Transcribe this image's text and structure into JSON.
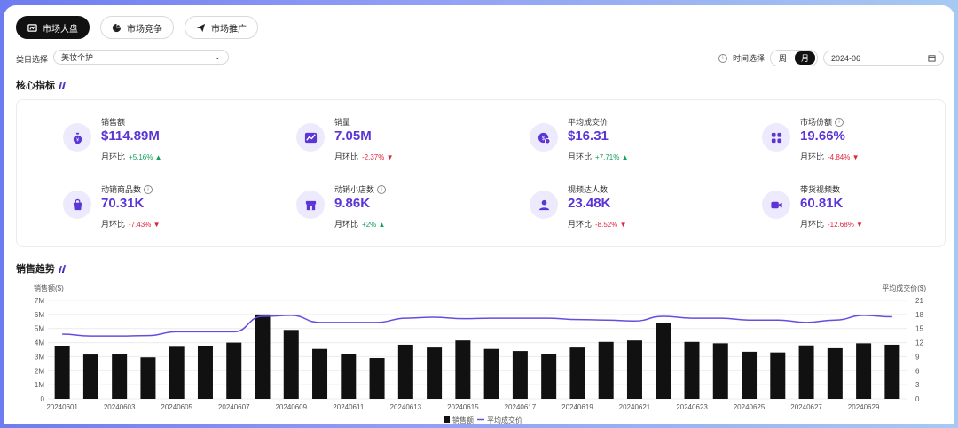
{
  "tabs": [
    {
      "label": "市场大盘",
      "icon": "chart-board-icon",
      "active": true
    },
    {
      "label": "市场竞争",
      "icon": "competition-icon",
      "active": false
    },
    {
      "label": "市场推广",
      "icon": "send-icon",
      "active": false
    }
  ],
  "filters": {
    "category_label": "类目选择",
    "category_value": "美妆个护",
    "time_label": "时间选择",
    "period_week": "周",
    "period_month": "月",
    "month_value": "2024-06"
  },
  "core": {
    "title": "核心指标",
    "compare_label": "月环比",
    "items": [
      {
        "name": "销售额",
        "value": "$114.89M",
        "change": "+5.16%",
        "dir": "up",
        "icon": "money-bag-icon",
        "info": false
      },
      {
        "name": "销量",
        "value": "7.05M",
        "change": "-2.37%",
        "dir": "down",
        "icon": "trend-chart-icon",
        "info": false
      },
      {
        "name": "平均成交价",
        "value": "$16.31",
        "change": "+7.71%",
        "dir": "up",
        "icon": "price-coin-icon",
        "info": false
      },
      {
        "name": "市场份额",
        "value": "19.66%",
        "change": "-4.84%",
        "dir": "down",
        "icon": "grid-icon",
        "info": true
      },
      {
        "name": "动销商品数",
        "value": "70.31K",
        "change": "-7.43%",
        "dir": "down",
        "icon": "shopping-bag-icon",
        "info": true
      },
      {
        "name": "动销小店数",
        "value": "9.86K",
        "change": "+2%",
        "dir": "up",
        "icon": "store-icon",
        "info": true
      },
      {
        "name": "视频达人数",
        "value": "23.48K",
        "change": "-8.52%",
        "dir": "down",
        "icon": "person-icon",
        "info": false
      },
      {
        "name": "带货视频数",
        "value": "60.81K",
        "change": "-12.68%",
        "dir": "down",
        "icon": "video-icon",
        "info": false
      }
    ]
  },
  "trend": {
    "title": "销售趋势"
  },
  "colors": {
    "accent": "#5b35d5",
    "bar": "#111111",
    "line": "#6a4be0",
    "up": "#12a05a",
    "down": "#e0243a"
  },
  "chart_data": {
    "type": "bar",
    "title": "销售趋势",
    "ylabel": "销售额($)",
    "y2label": "平均成交价($)",
    "ylim": [
      0,
      7000000
    ],
    "y2lim": [
      0,
      21
    ],
    "yticks": [
      "0",
      "1M",
      "2M",
      "3M",
      "4M",
      "5M",
      "6M",
      "7M"
    ],
    "y2ticks": [
      "0",
      "3",
      "6",
      "9",
      "12",
      "15",
      "18",
      "21"
    ],
    "categories": [
      "20240601",
      "20240602",
      "20240603",
      "20240604",
      "20240605",
      "20240606",
      "20240607",
      "20240608",
      "20240609",
      "20240610",
      "20240611",
      "20240612",
      "20240613",
      "20240614",
      "20240615",
      "20240616",
      "20240617",
      "20240618",
      "20240619",
      "20240620",
      "20240621",
      "20240622",
      "20240623",
      "20240624",
      "20240625",
      "20240626",
      "20240627",
      "20240628",
      "20240629",
      "20240630"
    ],
    "xtick_labels": [
      "20240601",
      "",
      "20240603",
      "",
      "20240605",
      "",
      "20240607",
      "",
      "20240609",
      "",
      "20240611",
      "",
      "20240613",
      "",
      "20240615",
      "",
      "20240617",
      "",
      "20240619",
      "",
      "20240621",
      "",
      "20240623",
      "",
      "20240625",
      "",
      "20240627",
      "",
      "20240629",
      ""
    ],
    "series": [
      {
        "name": "销售额",
        "axis": "left",
        "type": "bar",
        "values": [
          3750000,
          3150000,
          3200000,
          2950000,
          3700000,
          3750000,
          4000000,
          6000000,
          4900000,
          3550000,
          3200000,
          2900000,
          3850000,
          3650000,
          4150000,
          3550000,
          3400000,
          3200000,
          3650000,
          4050000,
          4150000,
          5400000,
          4050000,
          3950000,
          3350000,
          3300000,
          3800000,
          3600000,
          3950000,
          3850000
        ]
      },
      {
        "name": "平均成交价",
        "axis": "right",
        "type": "line",
        "values": [
          13.8,
          13.4,
          13.4,
          13.5,
          14.3,
          14.3,
          14.3,
          17.6,
          17.8,
          16.3,
          16.3,
          16.3,
          17.2,
          17.4,
          17.1,
          17.2,
          17.2,
          17.2,
          16.9,
          16.8,
          16.6,
          17.6,
          17.2,
          17.2,
          16.8,
          16.8,
          16.3,
          16.8,
          17.8,
          17.5
        ]
      }
    ],
    "legend": [
      "销售额",
      "平均成交价"
    ]
  }
}
